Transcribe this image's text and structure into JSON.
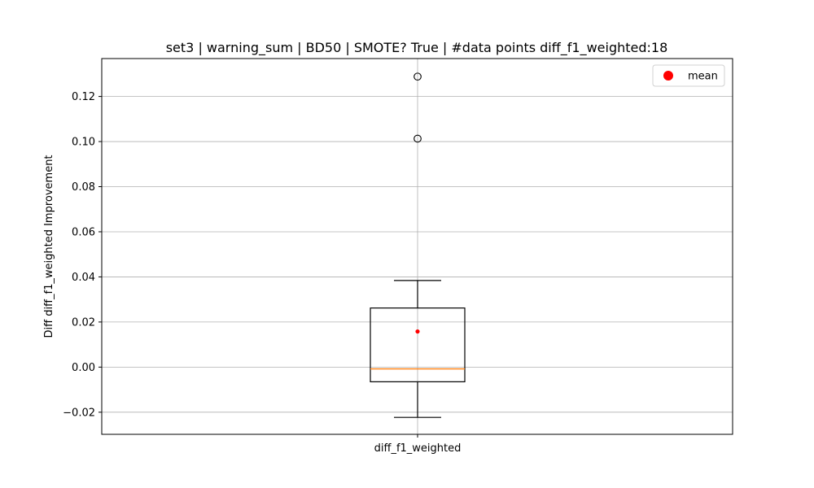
{
  "chart_data": {
    "type": "box",
    "title": "set3 | warning_sum | BD50 | SMOTE? True | #data points diff_f1_weighted:18",
    "xlabel": "",
    "ylabel": "Diff diff_f1_weighted Improvement",
    "categories": [
      "diff_f1_weighted"
    ],
    "ylim": [
      -0.0298,
      0.1368
    ],
    "yticks": [
      -0.02,
      0.0,
      0.02,
      0.04,
      0.06,
      0.08,
      0.1,
      0.12
    ],
    "ytick_labels": [
      "−0.02",
      "0.00",
      "0.02",
      "0.04",
      "0.06",
      "0.08",
      "0.10",
      "0.12"
    ],
    "grid": true,
    "legend": {
      "placement": "top-right",
      "entries": [
        {
          "label": "mean",
          "color": "#ff0000"
        }
      ]
    },
    "box": {
      "q1": -0.0065,
      "median": -0.0008,
      "q3": 0.0262,
      "whisker_low": -0.0223,
      "whisker_high": 0.0384,
      "mean": 0.0158,
      "outliers": [
        0.1013,
        0.1288
      ]
    },
    "colors": {
      "median": "#ff7f0e",
      "mean": "#ff0000",
      "grid": "#b0b0b0",
      "box": "#000000"
    }
  }
}
